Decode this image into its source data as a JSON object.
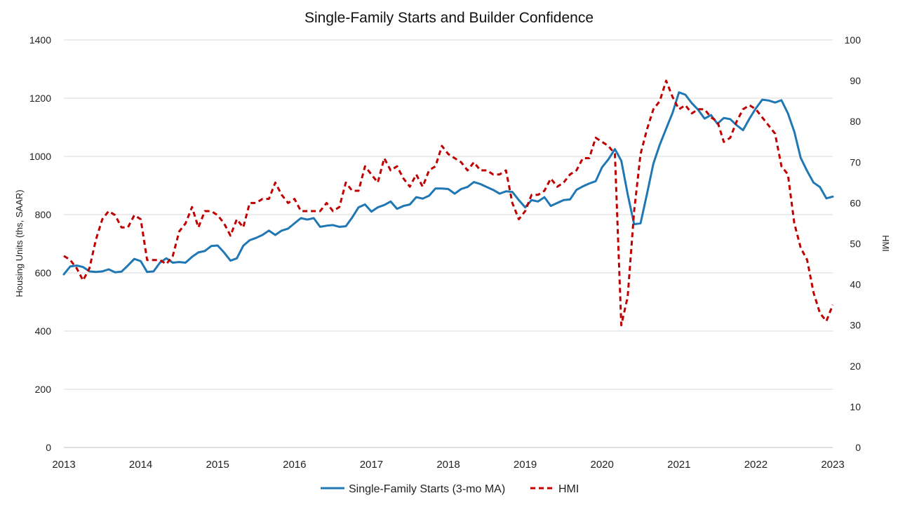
{
  "chart_data": {
    "type": "line",
    "title": "Single-Family Starts and Builder Confidence",
    "ylabel_left": "Housing Units (ths, SAAR)",
    "ylabel_right": "HMI",
    "xlim": [
      2013,
      2023
    ],
    "ylim_left": [
      0,
      1400
    ],
    "ylim_right": [
      0,
      100
    ],
    "x_ticks": [
      "2013",
      "2014",
      "2015",
      "2016",
      "2017",
      "2018",
      "2019",
      "2020",
      "2021",
      "2022",
      "2023"
    ],
    "y_ticks_left": [
      "0",
      "200",
      "400",
      "600",
      "800",
      "1000",
      "1200",
      "1400"
    ],
    "y_ticks_right": [
      "0",
      "10",
      "20",
      "30",
      "40",
      "50",
      "60",
      "70",
      "80",
      "90",
      "100"
    ],
    "grid": "horizontal",
    "legend_position": "bottom",
    "series": [
      {
        "name": "Single-Family Starts (3-mo MA)",
        "axis": "left",
        "color": "#1f77b4",
        "dash": "solid",
        "start_year": 2013,
        "step_months": 1,
        "values": [
          595,
          622,
          625,
          620,
          605,
          603,
          605,
          612,
          602,
          604,
          625,
          648,
          640,
          603,
          605,
          635,
          650,
          635,
          637,
          635,
          655,
          670,
          675,
          692,
          694,
          670,
          642,
          650,
          693,
          712,
          720,
          730,
          745,
          730,
          745,
          752,
          770,
          788,
          783,
          788,
          758,
          762,
          764,
          758,
          760,
          790,
          825,
          835,
          810,
          825,
          833,
          845,
          820,
          830,
          835,
          860,
          855,
          865,
          890,
          890,
          888,
          872,
          888,
          895,
          912,
          905,
          895,
          885,
          872,
          880,
          878,
          850,
          825,
          850,
          845,
          860,
          830,
          840,
          850,
          852,
          885,
          897,
          907,
          915,
          963,
          990,
          1025,
          985,
          870,
          767,
          770,
          870,
          975,
          1040,
          1095,
          1150,
          1220,
          1212,
          1183,
          1160,
          1130,
          1142,
          1112,
          1132,
          1128,
          1107,
          1090,
          1130,
          1165,
          1195,
          1192,
          1185,
          1193,
          1148,
          1085,
          995,
          950,
          910,
          895,
          856,
          862
        ]
      },
      {
        "name": "HMI",
        "axis": "right",
        "color": "#c00000",
        "dash": "dashed",
        "start_year": 2013,
        "step_months": 1,
        "values": [
          47,
          46,
          44,
          41,
          44,
          51,
          56,
          58,
          57,
          54,
          54,
          57,
          56,
          46,
          46,
          46,
          45,
          47,
          53,
          55,
          59,
          54,
          58,
          58,
          57,
          55,
          52,
          56,
          54,
          60,
          60,
          61,
          61,
          65,
          62,
          60,
          61,
          58,
          58,
          58,
          58,
          60,
          58,
          59,
          65,
          63,
          63,
          69,
          67,
          65,
          71,
          68,
          69,
          66,
          64,
          67,
          64,
          68,
          69,
          74,
          72,
          71,
          70,
          68,
          70,
          68,
          68,
          67,
          67,
          68,
          60,
          56,
          58,
          62,
          62,
          63,
          66,
          64,
          65,
          67,
          68,
          71,
          71,
          76,
          75,
          74,
          72,
          30,
          37,
          58,
          72,
          78,
          83,
          85,
          90,
          86,
          83,
          84,
          82,
          83,
          83,
          81,
          80,
          75,
          76,
          80,
          83,
          84,
          83,
          81,
          79,
          77,
          69,
          67,
          55,
          49,
          46,
          38,
          33,
          31,
          35
        ]
      }
    ]
  }
}
